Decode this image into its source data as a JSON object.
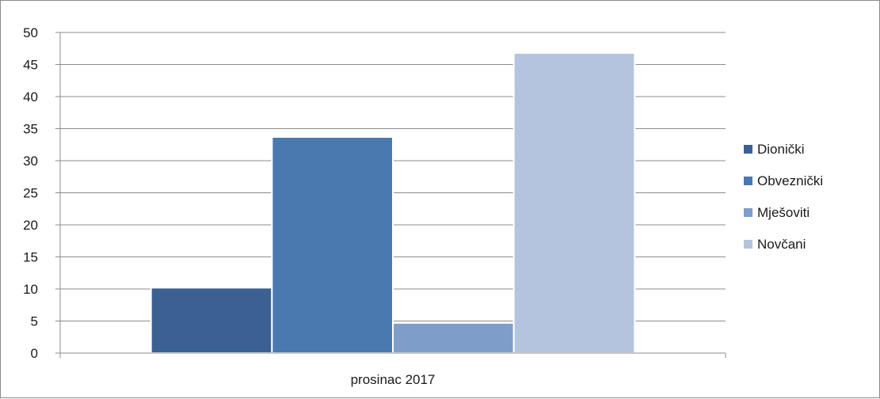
{
  "chart_data": {
    "type": "bar",
    "categories": [
      "prosinac 2017"
    ],
    "series": [
      {
        "name": "Dionički",
        "values": [
          10.2
        ],
        "color": "#3b6192"
      },
      {
        "name": "Obveznički",
        "values": [
          33.7
        ],
        "color": "#4a79b0"
      },
      {
        "name": "Mješoviti",
        "values": [
          4.7
        ],
        "color": "#7f9dc9"
      },
      {
        "name": "Novčani",
        "values": [
          46.8
        ],
        "color": "#b4c4de"
      }
    ],
    "ylim": [
      0,
      50
    ],
    "yticks": [
      "0",
      "5",
      "10",
      "15",
      "20",
      "25",
      "30",
      "35",
      "40",
      "45",
      "50"
    ],
    "grid": true,
    "legend_position": "right"
  }
}
